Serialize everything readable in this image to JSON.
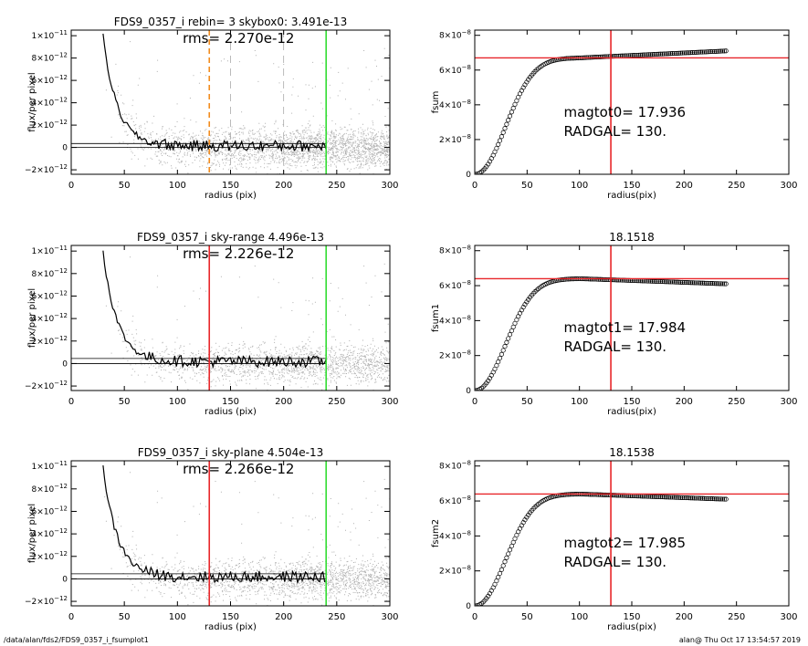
{
  "footer": {
    "path": "/data/alan/fds2/FDS9_0357_i_fsumplot1",
    "stamp": "alan@  Thu Oct 17 13:54:57 2019"
  },
  "colors": {
    "red": "#e8262a",
    "green": "#33dd33",
    "orange": "#f28c1e",
    "scatter": "#b0b0b0",
    "dashgray": "#aaaaaa"
  },
  "chart_data": [
    {
      "type": "scatter",
      "title": "FDS9_0357_i rebin= 3    skybox0:  3.491e-13",
      "annotation": "rms= 2.270e-12",
      "xlabel": "radius (pix)",
      "ylabel": "flux/per pixel",
      "xlim": [
        0,
        300
      ],
      "ylim": [
        -2.4e-12,
        1.05e-11
      ],
      "xticks": [
        0,
        50,
        100,
        150,
        200,
        250,
        300
      ],
      "yticks": [
        {
          "v": -2e-12,
          "m": "−2×10",
          "e": "−12"
        },
        {
          "v": 0,
          "m": "0",
          "e": ""
        },
        {
          "v": 2e-12,
          "m": "2×10",
          "e": "−12"
        },
        {
          "v": 4e-12,
          "m": "4×10",
          "e": "−12"
        },
        {
          "v": 6e-12,
          "m": "6×10",
          "e": "−12"
        },
        {
          "v": 8e-12,
          "m": "8×10",
          "e": "−12"
        },
        {
          "v": 1e-11,
          "m": "1×10",
          "e": "−11"
        }
      ],
      "vlines": [
        {
          "x": 130,
          "color": "orange",
          "dash": true
        },
        {
          "x": 150,
          "color": "dashgray",
          "dash": true
        },
        {
          "x": 200,
          "color": "dashgray",
          "dash": true
        },
        {
          "x": 240,
          "color": "green",
          "dash": false
        }
      ],
      "hlines": [
        0,
        3.491e-13
      ]
    },
    {
      "type": "line",
      "title": "",
      "annotation_lines": [
        "magtot0=  17.936",
        "RADGAL=    130."
      ],
      "xlabel": "radius(pix)",
      "ylabel": "fsum",
      "xlim": [
        0,
        300
      ],
      "ylim": [
        0,
        8.3e-08
      ],
      "xticks": [
        0,
        50,
        100,
        150,
        200,
        250,
        300
      ],
      "yticks": [
        {
          "v": 0,
          "m": "0",
          "e": ""
        },
        {
          "v": 2e-08,
          "m": "2×10",
          "e": "−8"
        },
        {
          "v": 4e-08,
          "m": "4×10",
          "e": "−8"
        },
        {
          "v": 6e-08,
          "m": "6×10",
          "e": "−8"
        },
        {
          "v": 8e-08,
          "m": "8×10",
          "e": "−8"
        }
      ],
      "asymptote": 6.7e-08,
      "tail": 7.1e-08,
      "radgal": 130,
      "hline": 6.7e-08
    },
    {
      "type": "scatter",
      "title": "FDS9_0357_i sky-range  4.496e-13",
      "annotation": "rms= 2.226e-12",
      "xlabel": "radius (pix)",
      "ylabel": "flux/per pixel",
      "xlim": [
        0,
        300
      ],
      "ylim": [
        -2.4e-12,
        1.05e-11
      ],
      "xticks": [
        0,
        50,
        100,
        150,
        200,
        250,
        300
      ],
      "yticks": [
        {
          "v": -2e-12,
          "m": "−2×10",
          "e": "−12"
        },
        {
          "v": 0,
          "m": "0",
          "e": ""
        },
        {
          "v": 2e-12,
          "m": "2×10",
          "e": "−12"
        },
        {
          "v": 4e-12,
          "m": "4×10",
          "e": "−12"
        },
        {
          "v": 6e-12,
          "m": "6×10",
          "e": "−12"
        },
        {
          "v": 8e-12,
          "m": "8×10",
          "e": "−12"
        },
        {
          "v": 1e-11,
          "m": "1×10",
          "e": "−11"
        }
      ],
      "vlines": [
        {
          "x": 130,
          "color": "red",
          "dash": false
        },
        {
          "x": 240,
          "color": "green",
          "dash": false
        }
      ],
      "hlines": [
        0,
        4.496e-13
      ]
    },
    {
      "type": "line",
      "title": "18.1518",
      "annotation_lines": [
        "magtot1=  17.984",
        "RADGAL=    130."
      ],
      "xlabel": "radius(pix)",
      "ylabel": "fsum1",
      "xlim": [
        0,
        300
      ],
      "ylim": [
        0,
        8.3e-08
      ],
      "xticks": [
        0,
        50,
        100,
        150,
        200,
        250,
        300
      ],
      "yticks": [
        {
          "v": 0,
          "m": "0",
          "e": ""
        },
        {
          "v": 2e-08,
          "m": "2×10",
          "e": "−8"
        },
        {
          "v": 4e-08,
          "m": "4×10",
          "e": "−8"
        },
        {
          "v": 6e-08,
          "m": "6×10",
          "e": "−8"
        },
        {
          "v": 8e-08,
          "m": "8×10",
          "e": "−8"
        }
      ],
      "asymptote": 6.4e-08,
      "tail": 6.1e-08,
      "radgal": 130,
      "hline": 6.4e-08
    },
    {
      "type": "scatter",
      "title": "FDS9_0357_i sky-plane  4.504e-13",
      "annotation": "rms= 2.266e-12",
      "xlabel": "radius (pix)",
      "ylabel": "flux/per pixel",
      "xlim": [
        0,
        300
      ],
      "ylim": [
        -2.4e-12,
        1.05e-11
      ],
      "xticks": [
        0,
        50,
        100,
        150,
        200,
        250,
        300
      ],
      "yticks": [
        {
          "v": -2e-12,
          "m": "−2×10",
          "e": "−12"
        },
        {
          "v": 0,
          "m": "0",
          "e": ""
        },
        {
          "v": 2e-12,
          "m": "2×10",
          "e": "−12"
        },
        {
          "v": 4e-12,
          "m": "4×10",
          "e": "−12"
        },
        {
          "v": 6e-12,
          "m": "6×10",
          "e": "−12"
        },
        {
          "v": 8e-12,
          "m": "8×10",
          "e": "−12"
        },
        {
          "v": 1e-11,
          "m": "1×10",
          "e": "−11"
        }
      ],
      "vlines": [
        {
          "x": 130,
          "color": "red",
          "dash": false
        },
        {
          "x": 240,
          "color": "green",
          "dash": false
        }
      ],
      "hlines": [
        0,
        4.504e-13
      ]
    },
    {
      "type": "line",
      "title": "18.1538",
      "annotation_lines": [
        "magtot2=  17.985",
        "RADGAL=    130."
      ],
      "xlabel": "radius(pix)",
      "ylabel": "fsum2",
      "xlim": [
        0,
        300
      ],
      "ylim": [
        0,
        8.3e-08
      ],
      "xticks": [
        0,
        50,
        100,
        150,
        200,
        250,
        300
      ],
      "yticks": [
        {
          "v": 0,
          "m": "0",
          "e": ""
        },
        {
          "v": 2e-08,
          "m": "2×10",
          "e": "−8"
        },
        {
          "v": 4e-08,
          "m": "4×10",
          "e": "−8"
        },
        {
          "v": 6e-08,
          "m": "6×10",
          "e": "−8"
        },
        {
          "v": 8e-08,
          "m": "8×10",
          "e": "−8"
        }
      ],
      "asymptote": 6.4e-08,
      "tail": 6.1e-08,
      "radgal": 130,
      "hline": 6.4e-08
    }
  ]
}
